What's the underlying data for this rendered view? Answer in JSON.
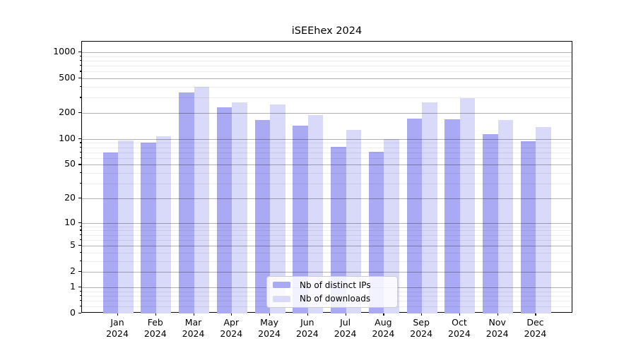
{
  "chart_data": {
    "type": "bar",
    "title": "iSEEhex 2024",
    "scale": "log1p",
    "grid": "on, drawn above bars",
    "legend_position": "lower center, inside axes",
    "categories": [
      "Jan",
      "Feb",
      "Mar",
      "Apr",
      "May",
      "Jun",
      "Jul",
      "Aug",
      "Sep",
      "Oct",
      "Nov",
      "Dec"
    ],
    "year": "2024",
    "series": [
      {
        "name": "Nb of distinct IPs",
        "color": "#a9a9f4",
        "values": [
          69,
          90,
          347,
          234,
          165,
          142,
          81,
          71,
          173,
          170,
          114,
          95
        ]
      },
      {
        "name": "Nb of downloads",
        "color": "#d9d9f9",
        "values": [
          96,
          108,
          402,
          265,
          250,
          188,
          128,
          100,
          263,
          297,
          167,
          138
        ]
      }
    ],
    "y_ticks": [
      0,
      1,
      2,
      5,
      10,
      20,
      50,
      100,
      200,
      500,
      1000
    ],
    "y_minor_ticks": [
      0.2,
      0.4,
      0.6,
      0.8,
      3,
      4,
      6,
      7,
      8,
      9,
      30,
      40,
      60,
      70,
      80,
      90,
      300,
      400,
      600,
      700,
      800,
      900
    ],
    "ylim": [
      0,
      1325
    ],
    "xlabel": "",
    "ylabel": ""
  },
  "colors": {
    "axis": "#000000",
    "major_grid": "#b3b3b3",
    "minor_grid": "#ededed",
    "background": "#ffffff",
    "legend_border": "#cccccc"
  }
}
